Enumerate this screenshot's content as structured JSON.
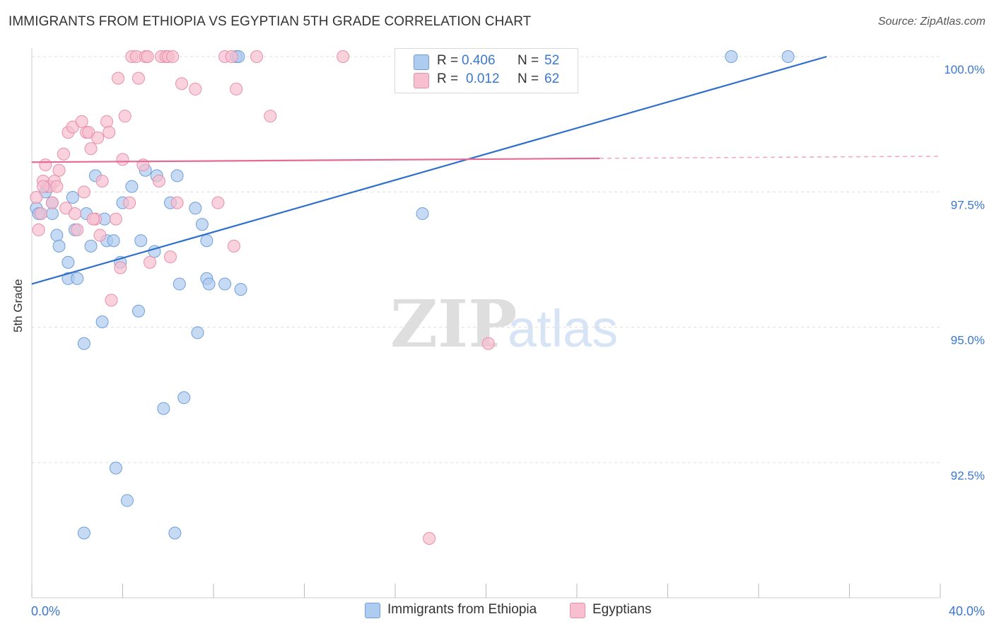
{
  "chart_data": {
    "type": "scatter",
    "title": "IMMIGRANTS FROM ETHIOPIA VS EGYPTIAN 5TH GRADE CORRELATION CHART",
    "source": "Source: ZipAtlas.com",
    "ylabel": "5th Grade",
    "xlabel": "",
    "xlim": [
      0,
      40
    ],
    "ylim": [
      90.2,
      100.4
    ],
    "x_tick_labels": {
      "left": "0.0%",
      "right": "40.0%"
    },
    "y_ticks": [
      {
        "value": 100.0,
        "label": "100.0%"
      },
      {
        "value": 97.5,
        "label": "97.5%"
      },
      {
        "value": 95.0,
        "label": "95.0%"
      },
      {
        "value": 92.5,
        "label": "92.5%"
      }
    ],
    "grid": true,
    "watermark": "ZIPatlas",
    "legend": {
      "rows": [
        {
          "r_label": "R =",
          "r_value": "0.406",
          "n_label": "N =",
          "n_value": "52",
          "color": "#aecbf0"
        },
        {
          "r_label": "R =",
          "r_value": "0.012",
          "n_label": "N =",
          "n_value": "62",
          "color": "#f7bfd0"
        }
      ]
    },
    "series": [
      {
        "name": "Immigrants from Ethiopia",
        "fill": "#aecbf0",
        "stroke": "#6f9fd8",
        "line_color": "#2f6fcc",
        "trend": {
          "x0": 0,
          "y0": 95.8,
          "x1": 35.0,
          "y1": 100.0,
          "dashed_to": null
        },
        "points": [
          [
            0.2,
            97.2
          ],
          [
            0.4,
            97.1
          ],
          [
            0.6,
            97.5
          ],
          [
            0.7,
            97.6
          ],
          [
            0.9,
            97.3
          ],
          [
            0.9,
            97.1
          ],
          [
            1.1,
            96.7
          ],
          [
            1.2,
            96.5
          ],
          [
            1.6,
            96.2
          ],
          [
            1.6,
            95.9
          ],
          [
            1.9,
            96.8
          ],
          [
            2.0,
            95.9
          ],
          [
            2.6,
            96.5
          ],
          [
            3.1,
            95.1
          ],
          [
            3.2,
            97.0
          ],
          [
            3.3,
            96.6
          ],
          [
            3.6,
            96.6
          ],
          [
            3.9,
            96.2
          ],
          [
            4.0,
            97.3
          ],
          [
            4.4,
            97.6
          ],
          [
            4.7,
            95.3
          ],
          [
            4.8,
            96.6
          ],
          [
            5.0,
            97.9
          ],
          [
            5.4,
            96.4
          ],
          [
            5.5,
            97.8
          ],
          [
            6.1,
            97.3
          ],
          [
            6.4,
            97.8
          ],
          [
            6.5,
            95.8
          ],
          [
            6.7,
            93.7
          ],
          [
            7.2,
            97.2
          ],
          [
            7.5,
            96.9
          ],
          [
            7.3,
            94.9
          ],
          [
            7.7,
            96.6
          ],
          [
            7.7,
            95.9
          ],
          [
            7.8,
            95.8
          ],
          [
            8.5,
            95.8
          ],
          [
            9.2,
            95.7
          ],
          [
            9.0,
            100.0
          ],
          [
            9.1,
            100.0
          ],
          [
            30.8,
            100.0
          ],
          [
            33.3,
            100.0
          ],
          [
            17.2,
            97.1
          ],
          [
            2.3,
            94.7
          ],
          [
            5.8,
            93.5
          ],
          [
            3.7,
            92.4
          ],
          [
            4.2,
            91.8
          ],
          [
            2.3,
            91.2
          ],
          [
            6.3,
            91.2
          ],
          [
            2.8,
            97.8
          ],
          [
            1.8,
            97.4
          ],
          [
            2.4,
            97.1
          ],
          [
            0.3,
            97.1
          ]
        ]
      },
      {
        "name": "Egyptians",
        "fill": "#f7bfd0",
        "stroke": "#e88fab",
        "line_color": "#e66a96",
        "trend": {
          "x0": 0,
          "y0": 98.05,
          "x1": 25.0,
          "y1": 98.12,
          "dashed_to": {
            "x": 40.0,
            "y": 98.16
          }
        },
        "points": [
          [
            0.2,
            97.4
          ],
          [
            0.4,
            97.1
          ],
          [
            0.5,
            97.7
          ],
          [
            0.6,
            98.0
          ],
          [
            0.8,
            97.6
          ],
          [
            0.9,
            97.3
          ],
          [
            1.0,
            97.7
          ],
          [
            1.2,
            97.9
          ],
          [
            1.4,
            98.2
          ],
          [
            1.5,
            97.2
          ],
          [
            1.6,
            98.6
          ],
          [
            1.8,
            98.7
          ],
          [
            1.9,
            97.1
          ],
          [
            2.0,
            96.8
          ],
          [
            2.2,
            98.8
          ],
          [
            2.3,
            97.5
          ],
          [
            2.4,
            98.6
          ],
          [
            2.5,
            98.6
          ],
          [
            2.6,
            98.3
          ],
          [
            2.8,
            97.0
          ],
          [
            2.9,
            98.5
          ],
          [
            3.0,
            96.7
          ],
          [
            3.1,
            97.7
          ],
          [
            3.3,
            98.8
          ],
          [
            3.4,
            98.6
          ],
          [
            3.5,
            95.5
          ],
          [
            3.8,
            99.6
          ],
          [
            3.9,
            96.1
          ],
          [
            4.0,
            98.1
          ],
          [
            4.1,
            98.9
          ],
          [
            4.3,
            97.3
          ],
          [
            4.4,
            100.0
          ],
          [
            4.6,
            100.0
          ],
          [
            4.7,
            99.6
          ],
          [
            4.9,
            98.0
          ],
          [
            5.0,
            100.0
          ],
          [
            5.1,
            100.0
          ],
          [
            5.2,
            96.2
          ],
          [
            5.6,
            97.7
          ],
          [
            5.7,
            100.0
          ],
          [
            5.9,
            100.0
          ],
          [
            6.0,
            100.0
          ],
          [
            6.2,
            100.0
          ],
          [
            6.1,
            96.3
          ],
          [
            6.4,
            97.3
          ],
          [
            6.6,
            99.5
          ],
          [
            7.2,
            99.4
          ],
          [
            8.2,
            97.3
          ],
          [
            8.5,
            100.0
          ],
          [
            8.8,
            100.0
          ],
          [
            8.9,
            96.5
          ],
          [
            9.0,
            99.4
          ],
          [
            9.9,
            100.0
          ],
          [
            10.5,
            98.9
          ],
          [
            13.7,
            100.0
          ],
          [
            20.1,
            94.7
          ],
          [
            17.5,
            91.1
          ],
          [
            0.3,
            96.8
          ],
          [
            0.5,
            97.6
          ],
          [
            1.1,
            97.6
          ],
          [
            2.7,
            97.0
          ],
          [
            3.7,
            97.0
          ]
        ]
      }
    ]
  }
}
